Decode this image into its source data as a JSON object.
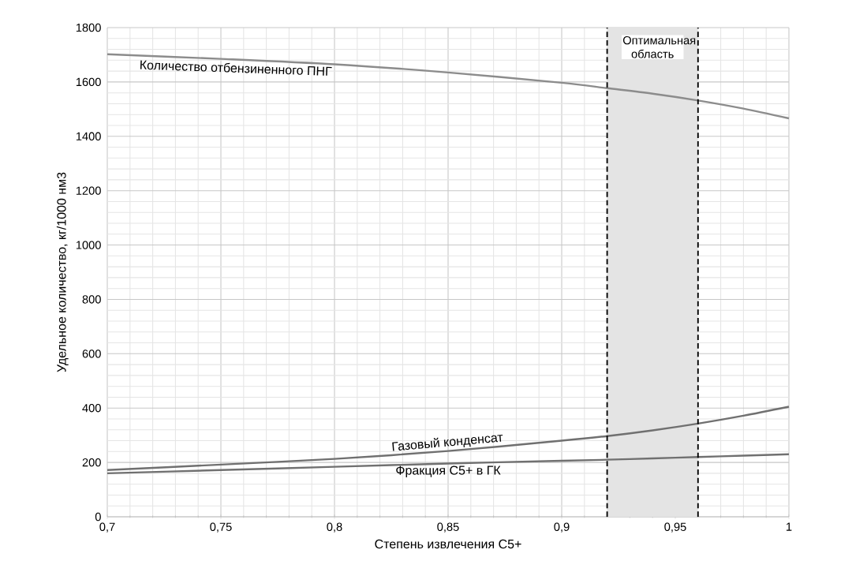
{
  "chart_data": {
    "type": "line",
    "xlabel": "Степень извлечения С5+",
    "ylabel": "Удельное количество, кг/1000 нм3",
    "xlim": [
      0.7,
      1
    ],
    "ylim": [
      0,
      1800
    ],
    "xticks": [
      {
        "value": 0.7,
        "label": "0,7"
      },
      {
        "value": 0.75,
        "label": "0,75"
      },
      {
        "value": 0.8,
        "label": "0,8"
      },
      {
        "value": 0.85,
        "label": "0,85"
      },
      {
        "value": 0.9,
        "label": "0,9"
      },
      {
        "value": 0.95,
        "label": "0,95"
      },
      1
    ],
    "yticks": [
      0,
      200,
      400,
      600,
      800,
      1000,
      1200,
      1400,
      1600,
      1800
    ],
    "grid": true,
    "line_style": "solid",
    "marker": "none",
    "x": [
      0.7,
      0.75,
      0.8,
      0.85,
      0.9,
      0.92,
      0.94,
      0.96,
      0.98,
      1.0
    ],
    "series": [
      {
        "name": "Количество отбензиненного ПНГ",
        "color": "#8c8c8c",
        "values": [
          1702,
          1685,
          1665,
          1635,
          1597,
          1577,
          1557,
          1532,
          1502,
          1466
        ]
      },
      {
        "name": "Газовый конденсат",
        "color": "#707070",
        "values": [
          172,
          192,
          213,
          242,
          280,
          297,
          318,
          343,
          372,
          405
        ]
      },
      {
        "name": "Фракция С5+ в ГК",
        "color": "#707070",
        "values": [
          160,
          172,
          184,
          196,
          206,
          210,
          215,
          220,
          225,
          230
        ]
      }
    ],
    "ref_lines": [
      {
        "axis": "x",
        "value": 0.92,
        "color": "#000000",
        "line_style": "dashed"
      },
      {
        "axis": "x",
        "value": 0.96,
        "color": "#000000",
        "line_style": "dashed"
      }
    ],
    "bands": [
      {
        "axis": "x",
        "from": 0.92,
        "to": 0.96,
        "label": "Оптимальная область",
        "color": "#e4e4e4"
      }
    ]
  }
}
